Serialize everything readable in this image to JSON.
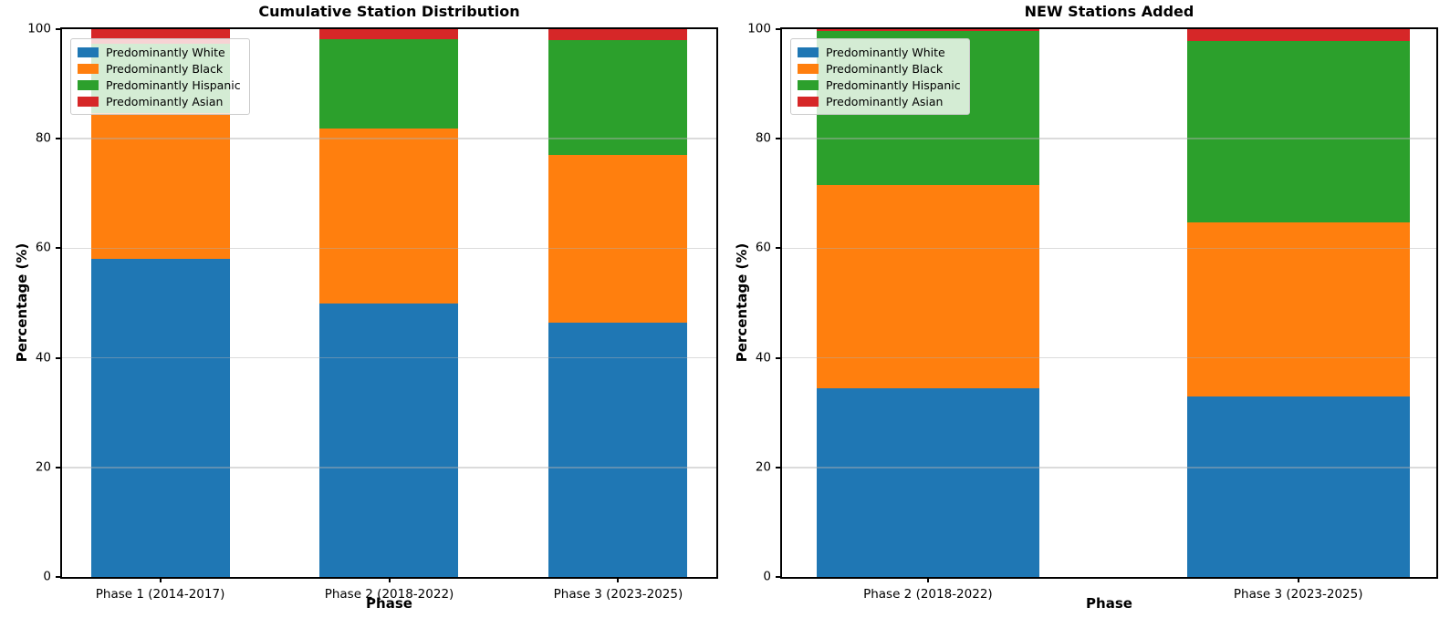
{
  "figure": {
    "background": "#ffffff"
  },
  "colors": {
    "white_series": "#1f77b4",
    "black_series": "#ff7f0e",
    "hispanic_series": "#2ca02c",
    "asian_series": "#d62728",
    "grid": "#b0b0b0"
  },
  "chart_data": [
    {
      "type": "bar",
      "stacked": true,
      "title": "Cumulative Station Distribution",
      "xlabel": "Phase",
      "ylabel": "Percentage (%)",
      "ylim": [
        0,
        100
      ],
      "yticks": [
        0,
        20,
        40,
        60,
        80,
        100
      ],
      "grid": true,
      "legend_position": "upper left",
      "categories": [
        "Phase 1 (2014-2017)",
        "Phase 2 (2018-2022)",
        "Phase 3 (2023-2025)"
      ],
      "series": [
        {
          "name": "Predominantly White",
          "color": "#1f77b4",
          "values": [
            58.0,
            50.0,
            46.5
          ]
        },
        {
          "name": "Predominantly Black",
          "color": "#ff7f0e",
          "values": [
            26.7,
            31.8,
            30.5
          ]
        },
        {
          "name": "Predominantly Hispanic",
          "color": "#2ca02c",
          "values": [
            12.7,
            16.4,
            21.0
          ]
        },
        {
          "name": "Predominantly Asian",
          "color": "#d62728",
          "values": [
            2.6,
            1.8,
            2.0
          ]
        }
      ],
      "layout": {
        "bar_centers_pct": [
          15,
          50,
          85
        ],
        "bar_width_pct": 21.2
      }
    },
    {
      "type": "bar",
      "stacked": true,
      "title": "NEW Stations Added",
      "xlabel": "Phase",
      "ylabel": "Percentage (%)",
      "ylim": [
        0,
        100
      ],
      "yticks": [
        0,
        20,
        40,
        60,
        80,
        100
      ],
      "grid": true,
      "legend_position": "upper left",
      "categories": [
        "Phase 2 (2018-2022)",
        "Phase 3 (2023-2025)"
      ],
      "series": [
        {
          "name": "Predominantly White",
          "color": "#1f77b4",
          "values": [
            34.4,
            33.0
          ]
        },
        {
          "name": "Predominantly Black",
          "color": "#ff7f0e",
          "values": [
            37.1,
            31.8
          ]
        },
        {
          "name": "Predominantly Hispanic",
          "color": "#2ca02c",
          "values": [
            28.2,
            33.1
          ]
        },
        {
          "name": "Predominantly Asian",
          "color": "#d62728",
          "values": [
            0.3,
            2.1
          ]
        }
      ],
      "layout": {
        "bar_centers_pct": [
          22.3,
          78.9
        ],
        "bar_width_pct": 34.0
      }
    }
  ]
}
